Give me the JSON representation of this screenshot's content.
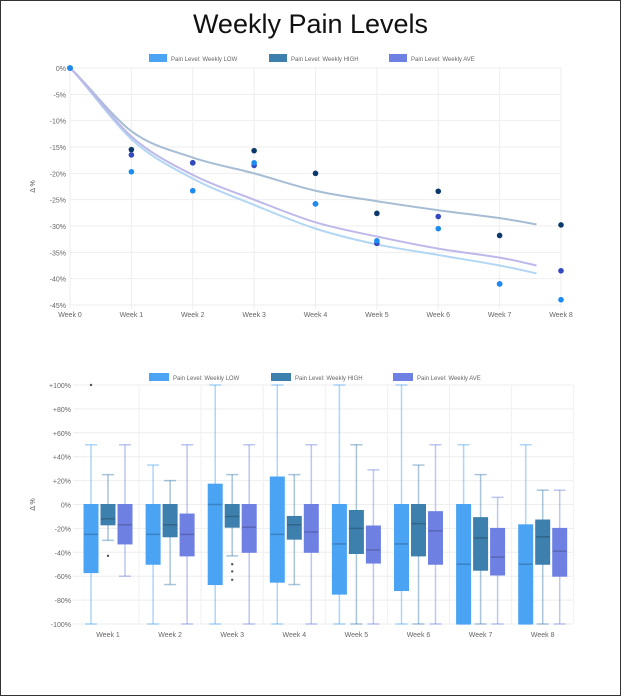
{
  "title": "Weekly Pain Levels",
  "colors": {
    "low": "#4aa3f3",
    "high": "#3d7fad",
    "ave": "#6e80e2",
    "low_point": "#1c8cf0",
    "high_point": "#0b3a6a",
    "ave_point": "#3448c0",
    "low_trend": "#b2d6f4",
    "high_trend": "#a6bdd4",
    "ave_trend": "#bdb9ea"
  },
  "chart_data": [
    {
      "type": "scatter",
      "ylabel": "Δ %",
      "ylim": [
        -45,
        0
      ],
      "yticks": [
        "0%",
        "-5%",
        "-10%",
        "-15%",
        "-20%",
        "-25%",
        "-30%",
        "-35%",
        "-40%",
        "-45%"
      ],
      "categories": [
        "Week 0",
        "Week 1",
        "Week 2",
        "Week 3",
        "Week 4",
        "Week 5",
        "Week 6",
        "Week 7",
        "Week 8"
      ],
      "grid": true,
      "legend": "top",
      "series": [
        {
          "name": "Pain Level: Weekly LOW",
          "key": "low",
          "values": [
            0,
            -19.7,
            -23.3,
            -18,
            -25.8,
            -32.8,
            -30.5,
            -41,
            -44
          ],
          "trend": [
            0,
            -13.5,
            -21,
            -26,
            -30.5,
            -33.5,
            -35.5,
            -37.5,
            -39
          ]
        },
        {
          "name": "Pain Level: Weekly HIGH",
          "key": "high",
          "values": [
            0,
            -15.5,
            -18,
            -15.7,
            -20,
            -27.6,
            -23.4,
            -31.8,
            -29.8
          ],
          "trend": [
            0,
            -12,
            -17,
            -20,
            -23.3,
            -25.3,
            -27,
            -28.5,
            -29.7
          ]
        },
        {
          "name": "Pain Level: Weekly AVE",
          "key": "ave",
          "values": [
            0,
            -16.5,
            -18,
            -18.5,
            -25.8,
            -33.3,
            -28.2,
            -41,
            -38.5
          ],
          "trend": [
            0,
            -13,
            -20.3,
            -25,
            -29.3,
            -32,
            -34.3,
            -36,
            -37.5
          ]
        }
      ]
    },
    {
      "type": "boxplot",
      "ylabel": "Δ %",
      "ylim": [
        -100,
        100
      ],
      "yticks": [
        "+100%",
        "+80%",
        "+60%",
        "+40%",
        "+20%",
        "0%",
        "-20%",
        "-40%",
        "-60%",
        "-80%",
        "-100%"
      ],
      "categories": [
        "Week 1",
        "Week 2",
        "Week 3",
        "Week 4",
        "Week 5",
        "Week 6",
        "Week 7",
        "Week 8"
      ],
      "grid": true,
      "legend": "top",
      "series": [
        {
          "name": "Pain Level: Weekly LOW",
          "key": "low",
          "boxes": [
            {
              "min": -100,
              "q1": -57,
              "median": -25,
              "q3": 0,
              "max": 50,
              "outliers": [
                100
              ]
            },
            {
              "min": -100,
              "q1": -50,
              "median": -25,
              "q3": 0,
              "max": 33,
              "outliers": []
            },
            {
              "min": -100,
              "q1": -67,
              "median": 0,
              "q3": 17,
              "max": 100,
              "outliers": []
            },
            {
              "min": -100,
              "q1": -65,
              "median": -25,
              "q3": 23,
              "max": 100,
              "outliers": []
            },
            {
              "min": -100,
              "q1": -75,
              "median": -33,
              "q3": 0,
              "max": 100,
              "outliers": []
            },
            {
              "min": -100,
              "q1": -72,
              "median": -33,
              "q3": 0,
              "max": 100,
              "outliers": []
            },
            {
              "min": -100,
              "q1": -100,
              "median": -50,
              "q3": 0,
              "max": 50,
              "outliers": []
            },
            {
              "min": -100,
              "q1": -100,
              "median": -50,
              "q3": -17,
              "max": 50,
              "outliers": []
            }
          ]
        },
        {
          "name": "Pain Level: Weekly HIGH",
          "key": "high",
          "boxes": [
            {
              "min": -30,
              "q1": -17,
              "median": -12,
              "q3": 0,
              "max": 25,
              "outliers": [
                -43
              ]
            },
            {
              "min": -67,
              "q1": -27,
              "median": -17,
              "q3": 0,
              "max": 20,
              "outliers": []
            },
            {
              "min": -43,
              "q1": -19,
              "median": -10,
              "q3": 0,
              "max": 25,
              "outliers": [
                -50,
                -56,
                -63
              ]
            },
            {
              "min": -67,
              "q1": -29,
              "median": -17,
              "q3": -10,
              "max": 25,
              "outliers": []
            },
            {
              "min": -100,
              "q1": -41,
              "median": -20,
              "q3": -5,
              "max": 50,
              "outliers": []
            },
            {
              "min": -100,
              "q1": -43,
              "median": -16,
              "q3": 0,
              "max": 33,
              "outliers": []
            },
            {
              "min": -100,
              "q1": -55,
              "median": -28,
              "q3": -11,
              "max": 25,
              "outliers": []
            },
            {
              "min": -100,
              "q1": -50,
              "median": -27,
              "q3": -13,
              "max": 12,
              "outliers": []
            }
          ]
        },
        {
          "name": "Pain Level: Weekly AVE",
          "key": "ave",
          "boxes": [
            {
              "min": -60,
              "q1": -33,
              "median": -17,
              "q3": 0,
              "max": 50,
              "outliers": []
            },
            {
              "min": -100,
              "q1": -43,
              "median": -25,
              "q3": -8,
              "max": 50,
              "outliers": []
            },
            {
              "min": -100,
              "q1": -40,
              "median": -19,
              "q3": 0,
              "max": 50,
              "outliers": []
            },
            {
              "min": -100,
              "q1": -40,
              "median": -23,
              "q3": 0,
              "max": 50,
              "outliers": []
            },
            {
              "min": -100,
              "q1": -49,
              "median": -38,
              "q3": -18,
              "max": 29,
              "outliers": []
            },
            {
              "min": -100,
              "q1": -50,
              "median": -22,
              "q3": -6,
              "max": 50,
              "outliers": []
            },
            {
              "min": -100,
              "q1": -59,
              "median": -44,
              "q3": -20,
              "max": 6,
              "outliers": []
            },
            {
              "min": -100,
              "q1": -60,
              "median": -39,
              "q3": -20,
              "max": 12,
              "outliers": []
            }
          ]
        }
      ]
    }
  ]
}
